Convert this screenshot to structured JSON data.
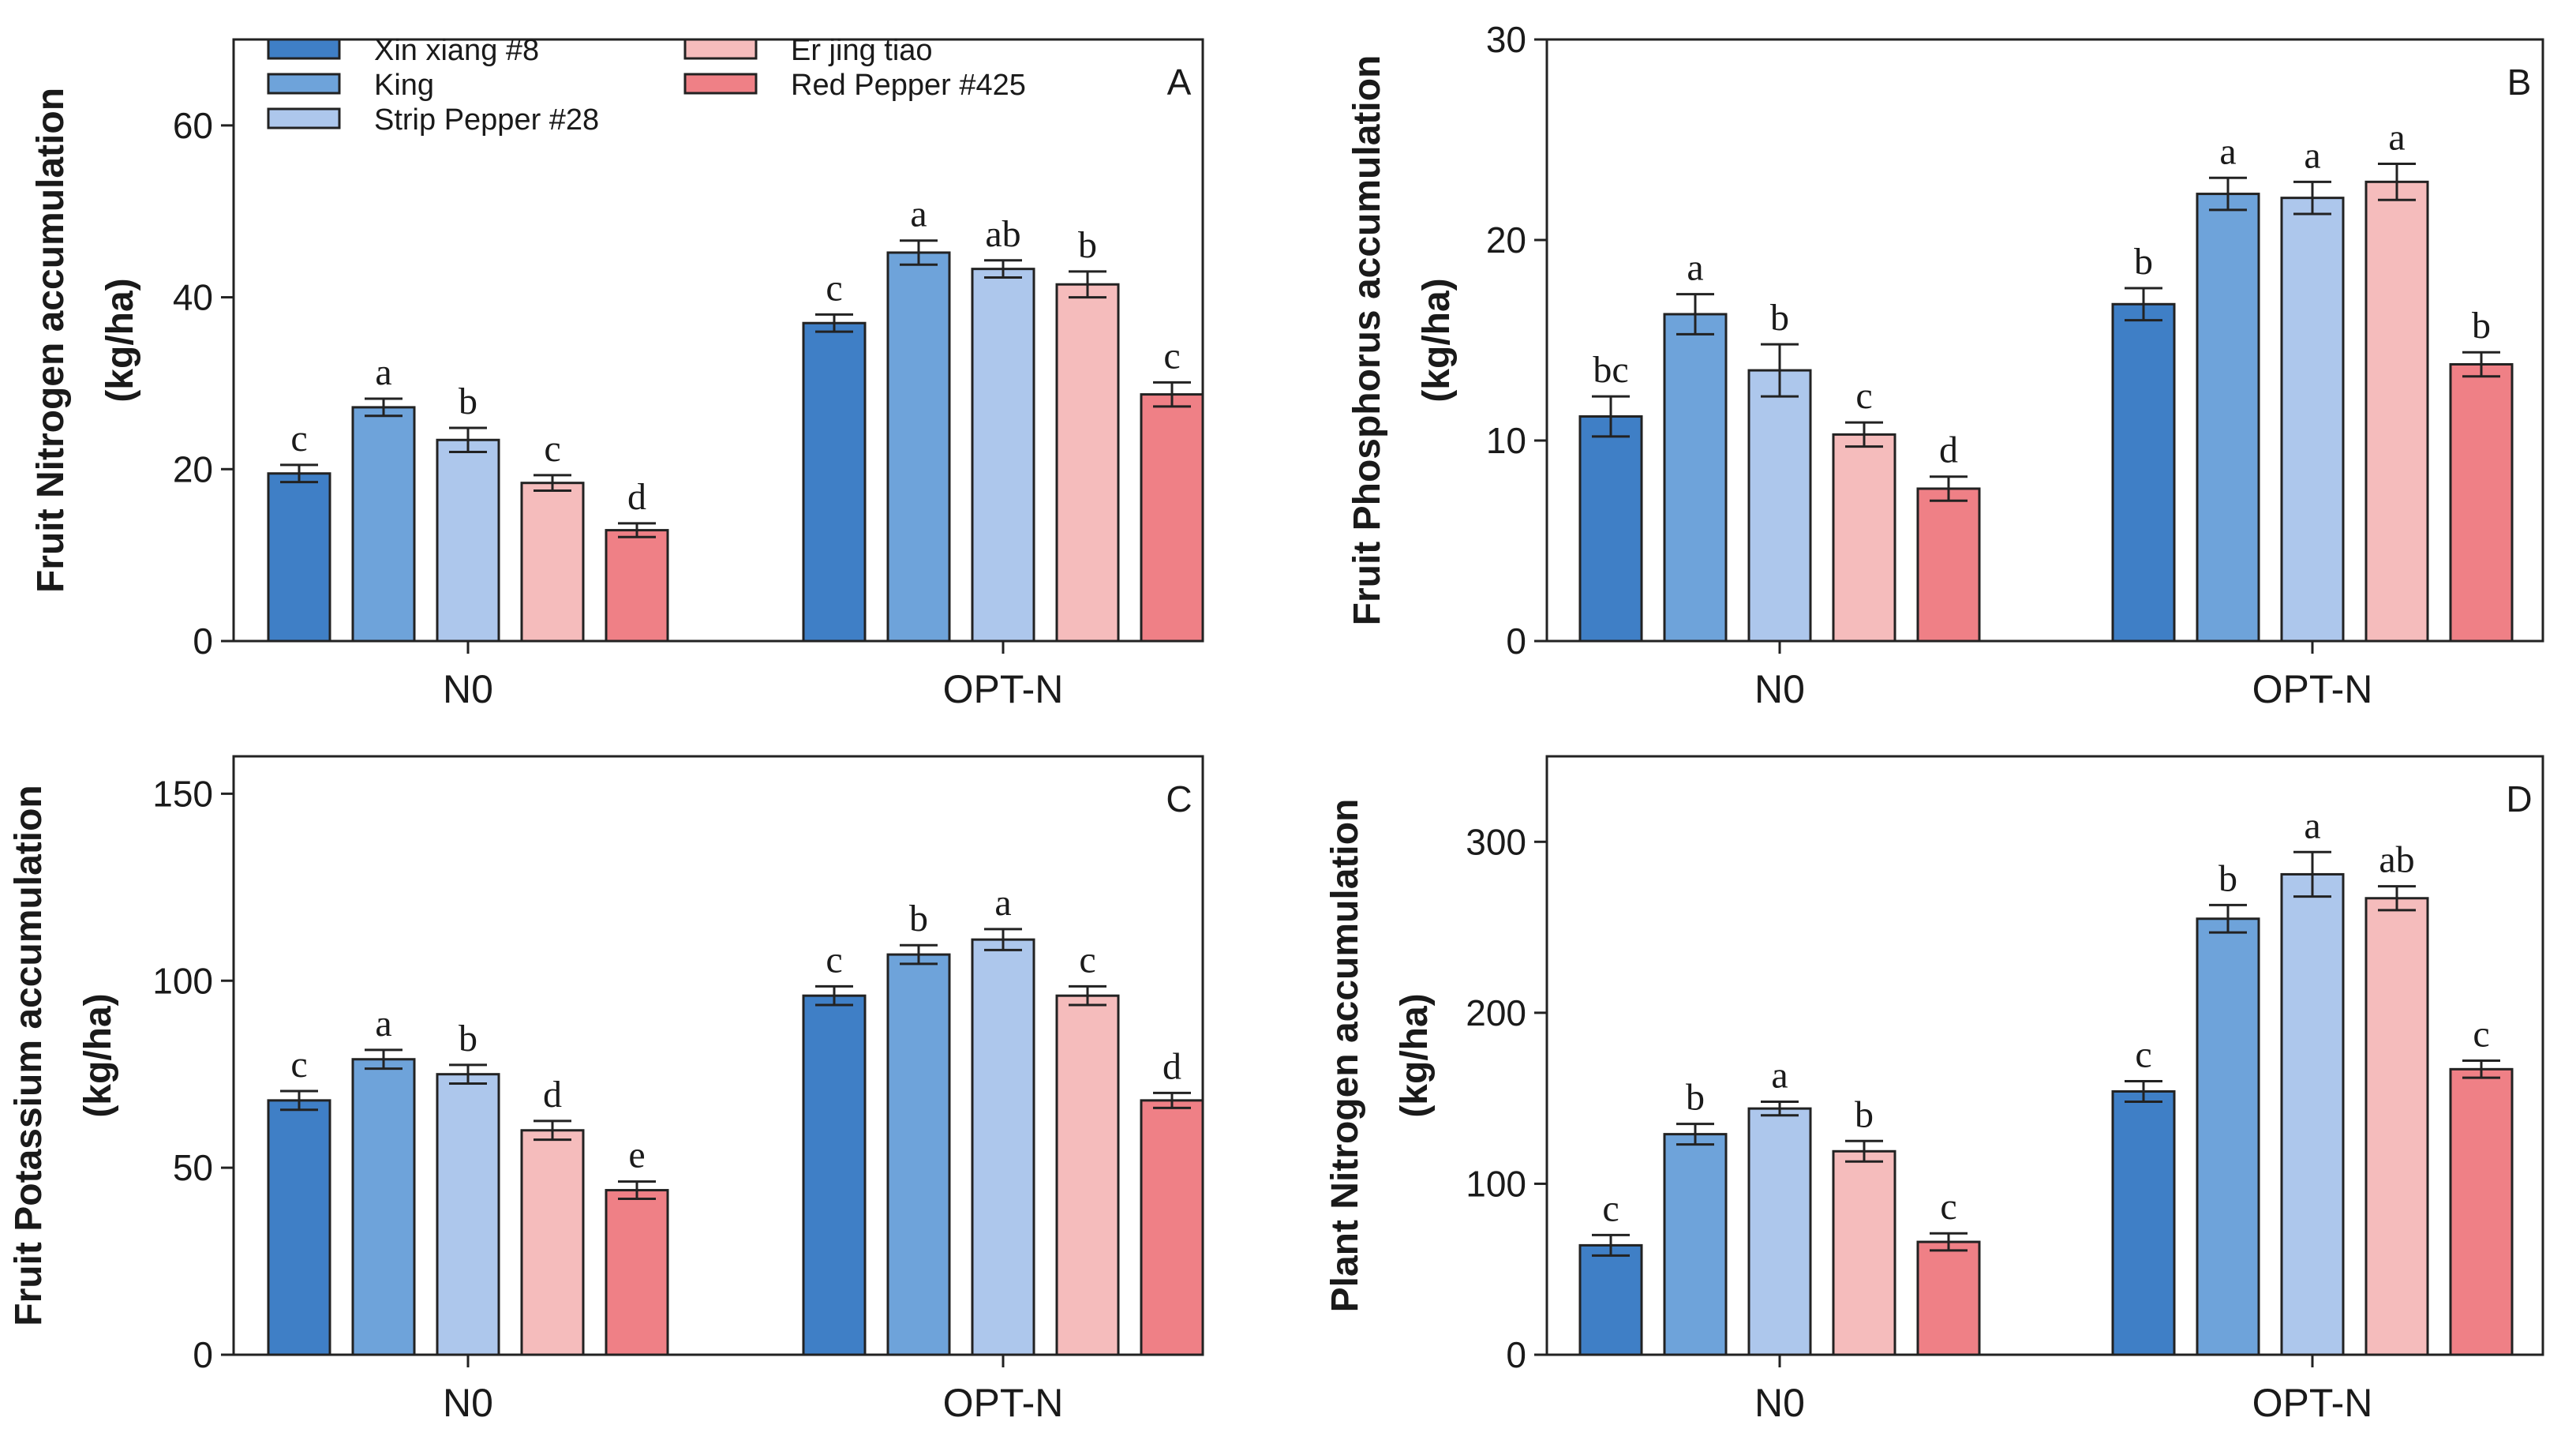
{
  "series_names": [
    "Xin xiang #8",
    "King",
    "Strip Pepper #28",
    "Er jing tiao",
    "Red Pepper #425"
  ],
  "colors": {
    "Xin xiang #8": "#3f7fc6",
    "King": "#6ea3da",
    "Strip Pepper #28": "#adc7ec",
    "Er jing tiao": "#f5bcbc",
    "Red Pepper #425": "#ef8086",
    "axis": "#222222",
    "bar_stroke": "#222222"
  },
  "chart_data": [
    {
      "type": "bar",
      "panel_letter": "A",
      "ylabel_line1": "Fruit Nitrogen accumulation",
      "ylabel_line2": "(kg/ha)",
      "categories": [
        "N0",
        "OPT-N"
      ],
      "ylim": [
        0,
        70
      ],
      "yticks": [
        0,
        20,
        40,
        60
      ],
      "series": [
        {
          "name": "Xin xiang #8",
          "values": [
            19.5,
            37.0
          ],
          "errors": [
            1.0,
            1.0
          ],
          "letters": [
            "c",
            "c"
          ]
        },
        {
          "name": "King",
          "values": [
            27.2,
            45.2
          ],
          "errors": [
            1.0,
            1.4
          ],
          "letters": [
            "a",
            "a"
          ]
        },
        {
          "name": "Strip Pepper #28",
          "values": [
            23.4,
            43.3
          ],
          "errors": [
            1.4,
            1.0
          ],
          "letters": [
            "b",
            "ab"
          ]
        },
        {
          "name": "Er jing tiao",
          "values": [
            18.4,
            41.5
          ],
          "errors": [
            0.9,
            1.5
          ],
          "letters": [
            "c",
            "b"
          ]
        },
        {
          "name": "Red Pepper #425",
          "values": [
            12.9,
            28.7
          ],
          "errors": [
            0.8,
            1.4
          ],
          "letters": [
            "d",
            "c"
          ]
        }
      ]
    },
    {
      "type": "bar",
      "panel_letter": "B",
      "ylabel_line1": "Fruit Phosphorus accumulation",
      "ylabel_line2": "(kg/ha)",
      "categories": [
        "N0",
        "OPT-N"
      ],
      "ylim": [
        0,
        30
      ],
      "yticks": [
        0,
        10,
        20,
        30
      ],
      "series": [
        {
          "name": "Xin xiang #8",
          "values": [
            11.2,
            16.8
          ],
          "errors": [
            1.0,
            0.8
          ],
          "letters": [
            "bc",
            "b"
          ]
        },
        {
          "name": "King",
          "values": [
            16.3,
            22.3
          ],
          "errors": [
            1.0,
            0.8
          ],
          "letters": [
            "a",
            "a"
          ]
        },
        {
          "name": "Strip Pepper #28",
          "values": [
            13.5,
            22.1
          ],
          "errors": [
            1.3,
            0.8
          ],
          "letters": [
            "b",
            "a"
          ]
        },
        {
          "name": "Er jing tiao",
          "values": [
            10.3,
            22.9
          ],
          "errors": [
            0.6,
            0.9
          ],
          "letters": [
            "c",
            "a"
          ]
        },
        {
          "name": "Red Pepper #425",
          "values": [
            7.6,
            13.8
          ],
          "errors": [
            0.6,
            0.6
          ],
          "letters": [
            "d",
            "b"
          ]
        }
      ]
    },
    {
      "type": "bar",
      "panel_letter": "C",
      "ylabel_line1": "Fruit Potassium accumulation",
      "ylabel_line2": "(kg/ha)",
      "categories": [
        "N0",
        "OPT-N"
      ],
      "ylim": [
        0,
        160
      ],
      "yticks": [
        0,
        50,
        100,
        150
      ],
      "series": [
        {
          "name": "Xin xiang #8",
          "values": [
            68,
            96
          ],
          "errors": [
            2.5,
            2.5
          ],
          "letters": [
            "c",
            "c"
          ]
        },
        {
          "name": "King",
          "values": [
            79,
            107
          ],
          "errors": [
            2.5,
            2.5
          ],
          "letters": [
            "a",
            "b"
          ]
        },
        {
          "name": "Strip Pepper #28",
          "values": [
            75,
            111
          ],
          "errors": [
            2.5,
            2.8
          ],
          "letters": [
            "b",
            "a"
          ]
        },
        {
          "name": "Er jing tiao",
          "values": [
            60,
            96
          ],
          "errors": [
            2.5,
            2.5
          ],
          "letters": [
            "d",
            "c"
          ]
        },
        {
          "name": "Red Pepper #425",
          "values": [
            44,
            68
          ],
          "errors": [
            2.3,
            2.0
          ],
          "letters": [
            "e",
            "d"
          ]
        }
      ]
    },
    {
      "type": "bar",
      "panel_letter": "D",
      "ylabel_line1": "Plant Nitrogen accumulation",
      "ylabel_line2": "(kg/ha)",
      "categories": [
        "N0",
        "OPT-N"
      ],
      "ylim": [
        0,
        350
      ],
      "yticks": [
        0,
        100,
        200,
        300
      ],
      "series": [
        {
          "name": "Xin xiang #8",
          "values": [
            64,
            154
          ],
          "errors": [
            6,
            6
          ],
          "letters": [
            "c",
            "c"
          ]
        },
        {
          "name": "King",
          "values": [
            129,
            255
          ],
          "errors": [
            6,
            8
          ],
          "letters": [
            "b",
            "b"
          ]
        },
        {
          "name": "Strip Pepper #28",
          "values": [
            144,
            281
          ],
          "errors": [
            4,
            13
          ],
          "letters": [
            "a",
            "a"
          ]
        },
        {
          "name": "Er jing tiao",
          "values": [
            119,
            267
          ],
          "errors": [
            6,
            7
          ],
          "letters": [
            "b",
            "ab"
          ]
        },
        {
          "name": "Red Pepper #425",
          "values": [
            66,
            167
          ],
          "errors": [
            5,
            5
          ],
          "letters": [
            "c",
            "c"
          ]
        }
      ]
    }
  ]
}
